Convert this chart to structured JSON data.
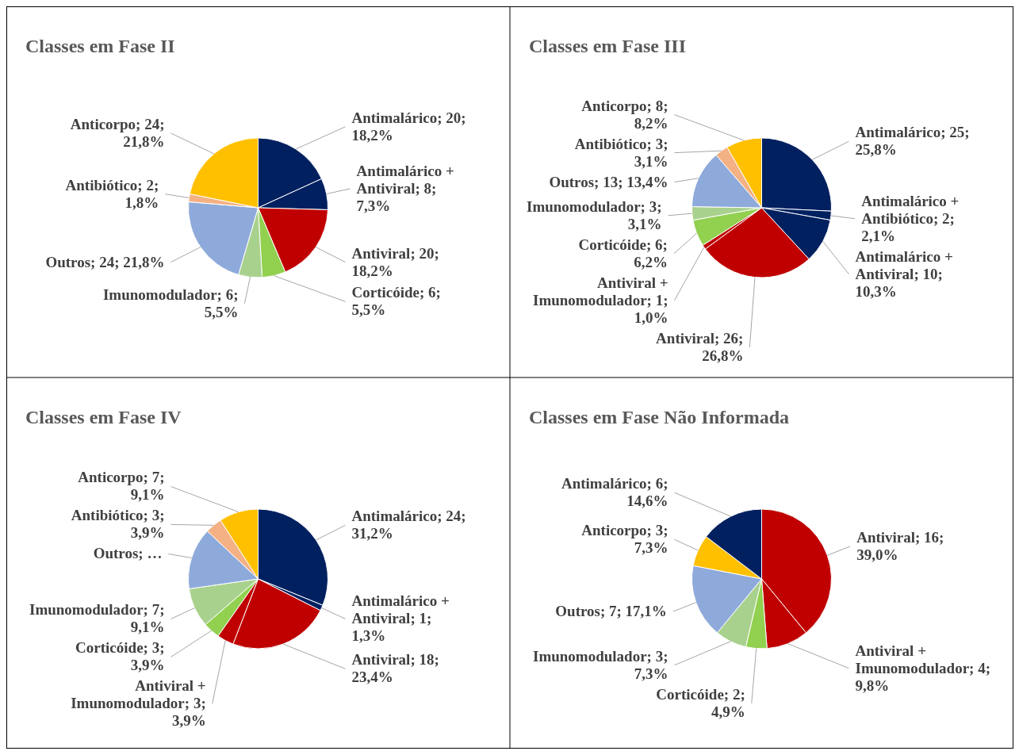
{
  "chart_data": [
    {
      "type": "pie",
      "title": "Classes em Fase II",
      "categories": [
        "Antimalárico",
        "Antimalárico + Antiviral",
        "Antiviral",
        "Corticóide",
        "Imunomodulador",
        "Outros",
        "Antibiótico",
        "Anticorpo"
      ],
      "values": [
        20,
        8,
        20,
        6,
        6,
        24,
        2,
        24
      ],
      "colors": [
        "#002060",
        "#002060",
        "#c00000",
        "#92d050",
        "#a9d18e",
        "#8eaadb",
        "#f4b183",
        "#ffc000"
      ],
      "value_labels": [
        "20; 18,2%",
        "8; 7,3%",
        "20; 18,2%",
        "6; 5,5%",
        "6; 5,5%",
        "24; 21,8%",
        "2; 1,8%",
        "24; 21,8%"
      ],
      "legend": false
    },
    {
      "type": "pie",
      "title": "Classes em Fase III",
      "categories": [
        "Antimalárico",
        "Antimalárico + Antibiótico",
        "Antimalárico + Antiviral",
        "Antiviral",
        "Antiviral + Imunomodulador",
        "Corticóide",
        "Imunomodulador",
        "Outros",
        "Antibiótico",
        "Anticorpo"
      ],
      "values": [
        25,
        2,
        10,
        26,
        1,
        6,
        3,
        13,
        3,
        8
      ],
      "colors": [
        "#002060",
        "#002060",
        "#002060",
        "#c00000",
        "#c00000",
        "#92d050",
        "#a9d18e",
        "#8eaadb",
        "#f4b183",
        "#ffc000"
      ],
      "value_labels": [
        "25; 25,8%",
        "2; 2,1%",
        "10; 10,3%",
        "26; 26,8%",
        "1; 1,0%",
        "6; 6,2%",
        "3; 3,1%",
        "13; 13,4%",
        "3; 3,1%",
        "8; 8,2%"
      ],
      "legend": false
    },
    {
      "type": "pie",
      "title": "Classes em Fase IV",
      "categories": [
        "Antimalárico",
        "Antimalárico + Antiviral",
        "Antiviral",
        "Antiviral + Imunomodulador",
        "Corticóide",
        "Imunomodulador",
        "Outros",
        "Antibiótico",
        "Anticorpo"
      ],
      "values": [
        24,
        1,
        18,
        3,
        3,
        7,
        11,
        3,
        7
      ],
      "colors": [
        "#002060",
        "#002060",
        "#c00000",
        "#c00000",
        "#92d050",
        "#a9d18e",
        "#8eaadb",
        "#f4b183",
        "#ffc000"
      ],
      "value_labels": [
        "24; 31,2%",
        "1; 1,3%",
        "18; 23,4%",
        "3; 3,9%",
        "3; 3,9%",
        "7; 9,1%",
        "…",
        "3; 3,9%",
        "7; 9,1%"
      ],
      "legend": false
    },
    {
      "type": "pie",
      "title": "Classes em Fase Não Informada",
      "categories": [
        "Antiviral",
        "Antiviral + Imunomodulador",
        "Corticóide",
        "Imunomodulador",
        "Outros",
        "Anticorpo",
        "Antimalárico"
      ],
      "values": [
        16,
        4,
        2,
        3,
        7,
        3,
        6
      ],
      "colors": [
        "#c00000",
        "#c00000",
        "#92d050",
        "#a9d18e",
        "#8eaadb",
        "#ffc000",
        "#002060"
      ],
      "value_labels": [
        "16; 39,0%",
        "4; 9,8%",
        "2; 4,9%",
        "3; 7,3%",
        "7; 17,1%",
        "3; 7,3%",
        "6; 14,6%"
      ],
      "legend": false
    }
  ]
}
